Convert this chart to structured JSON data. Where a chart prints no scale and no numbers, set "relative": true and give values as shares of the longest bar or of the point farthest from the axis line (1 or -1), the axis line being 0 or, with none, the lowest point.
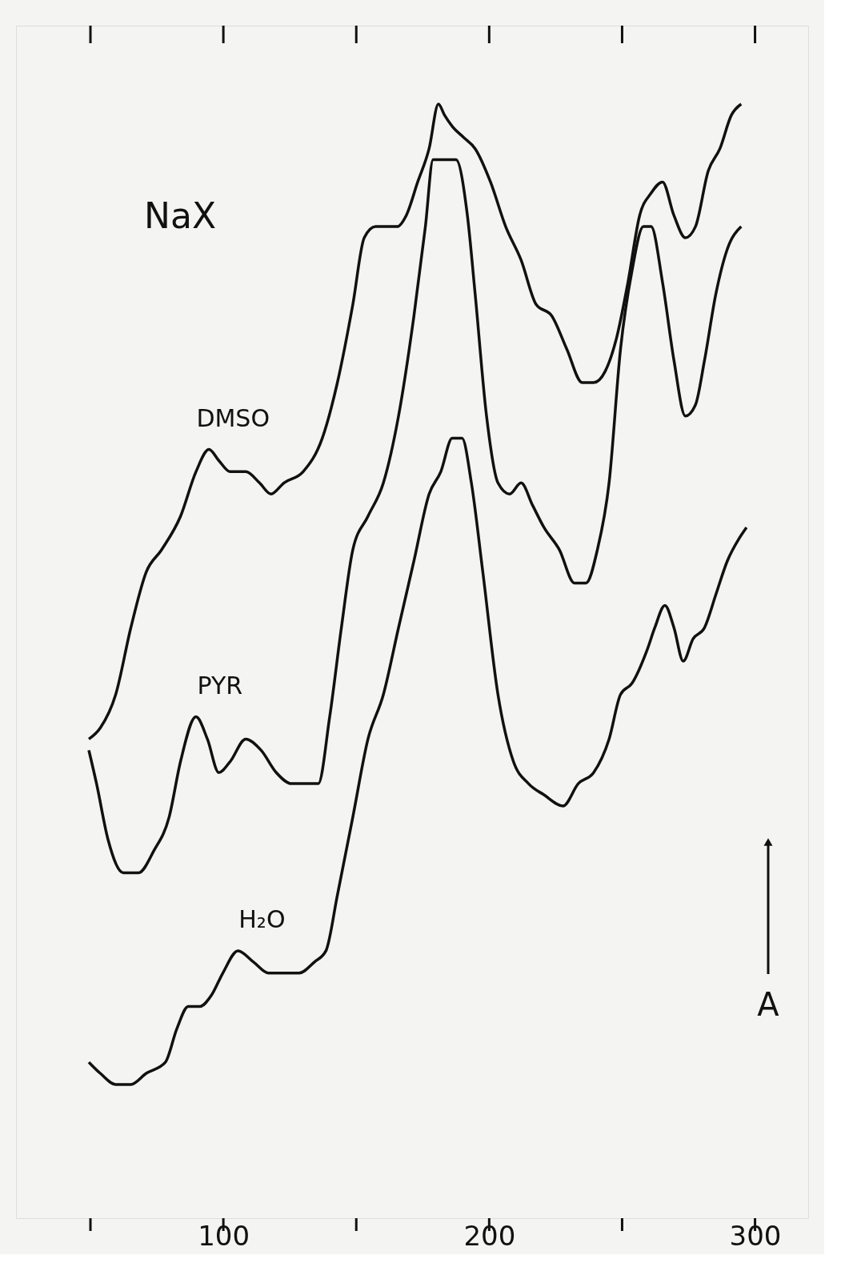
{
  "chart_data": {
    "type": "line",
    "title": "NaX",
    "ylabel": "A",
    "relative": true,
    "xlim": [
      22,
      320
    ],
    "xticks": [
      {
        "value": 50,
        "label": null
      },
      100,
      {
        "value": 150,
        "label": null
      },
      200,
      {
        "value": 250,
        "label": null
      },
      300
    ],
    "grid": false,
    "marker": "none",
    "line_style": "solid",
    "series": [
      {
        "name": "DMSO",
        "color": "#111111",
        "x": [
          49.4,
          53.7,
          59.5,
          65.2,
          71.0,
          76.8,
          83.9,
          89.7,
          94.6,
          98.3,
          102.6,
          108.4,
          113.6,
          117.9,
          122.8,
          130.0,
          137.2,
          142.9,
          148.7,
          153.0,
          157.3,
          161.6,
          165.4,
          168.8,
          173.1,
          177.4,
          180.9,
          183.2,
          186.1,
          190.4,
          194.7,
          200.5,
          206.2,
          212.0,
          217.7,
          223.5,
          229.2,
          235.0,
          239.3,
          243.6,
          247.9,
          252.2,
          256.6,
          260.9,
          265.2,
          269.5,
          273.8,
          277.6,
          282.4,
          286.8,
          291.1,
          294.8
        ],
        "values": [
          0.43,
          0.44,
          0.47,
          0.53,
          0.58,
          0.6,
          0.63,
          0.67,
          0.69,
          0.68,
          0.67,
          0.67,
          0.66,
          0.65,
          0.66,
          0.67,
          0.7,
          0.75,
          0.82,
          0.88,
          0.89,
          0.89,
          0.89,
          0.9,
          0.93,
          0.96,
          1.0,
          0.99,
          0.98,
          0.97,
          0.96,
          0.93,
          0.89,
          0.86,
          0.82,
          0.81,
          0.78,
          0.75,
          0.75,
          0.76,
          0.79,
          0.84,
          0.9,
          0.92,
          0.93,
          0.9,
          0.88,
          0.89,
          0.94,
          0.96,
          0.99,
          1.0
        ]
      },
      {
        "name": "PYR",
        "color": "#111111",
        "x": [
          49.4,
          52.3,
          56.6,
          62.4,
          68.1,
          73.9,
          79.6,
          83.9,
          89.7,
          94.0,
          98.3,
          102.6,
          108.4,
          114.2,
          119.9,
          125.7,
          131.4,
          135.7,
          140.0,
          144.4,
          148.7,
          154.4,
          160.2,
          165.9,
          171.7,
          176.0,
          178.9,
          181.8,
          187.5,
          191.8,
          194.7,
          199.0,
          203.3,
          207.7,
          212.0,
          216.3,
          220.6,
          226.4,
          232.1,
          236.4,
          240.7,
          245.1,
          249.4,
          253.7,
          258.0,
          260.9,
          265.2,
          269.5,
          273.8,
          277.6,
          281.0,
          285.3,
          289.6,
          294.8
        ],
        "values": [
          0.42,
          0.39,
          0.34,
          0.31,
          0.31,
          0.33,
          0.36,
          0.41,
          0.45,
          0.43,
          0.4,
          0.41,
          0.43,
          0.42,
          0.4,
          0.39,
          0.39,
          0.39,
          0.45,
          0.53,
          0.6,
          0.63,
          0.66,
          0.72,
          0.81,
          0.89,
          0.95,
          0.95,
          0.95,
          0.9,
          0.83,
          0.72,
          0.66,
          0.65,
          0.66,
          0.64,
          0.62,
          0.6,
          0.57,
          0.57,
          0.6,
          0.66,
          0.78,
          0.85,
          0.89,
          0.89,
          0.84,
          0.77,
          0.72,
          0.73,
          0.77,
          0.83,
          0.87,
          0.89
        ]
      },
      {
        "name": "H₂O",
        "color": "#111111",
        "x": [
          49.4,
          53.7,
          59.5,
          65.2,
          71.0,
          78.2,
          82.5,
          86.8,
          91.1,
          95.5,
          99.8,
          105.5,
          111.3,
          117.0,
          122.8,
          128.5,
          134.3,
          138.6,
          142.9,
          148.7,
          154.4,
          160.2,
          165.9,
          171.7,
          177.4,
          181.8,
          186.1,
          189.8,
          193.3,
          197.6,
          203.3,
          209.1,
          214.8,
          220.6,
          227.8,
          233.5,
          239.3,
          245.1,
          249.4,
          253.7,
          259.4,
          262.3,
          266.1,
          269.5,
          273.0,
          276.7,
          281.0,
          285.3,
          289.6,
          294.0,
          296.8
        ],
        "values": [
          0.14,
          0.13,
          0.12,
          0.12,
          0.13,
          0.14,
          0.17,
          0.19,
          0.19,
          0.2,
          0.22,
          0.24,
          0.23,
          0.22,
          0.22,
          0.22,
          0.23,
          0.24,
          0.29,
          0.36,
          0.43,
          0.47,
          0.53,
          0.59,
          0.65,
          0.67,
          0.7,
          0.7,
          0.66,
          0.58,
          0.47,
          0.41,
          0.39,
          0.38,
          0.37,
          0.39,
          0.4,
          0.43,
          0.47,
          0.48,
          0.51,
          0.53,
          0.55,
          0.53,
          0.5,
          0.52,
          0.53,
          0.56,
          0.59,
          0.61,
          0.62
        ]
      }
    ]
  }
}
